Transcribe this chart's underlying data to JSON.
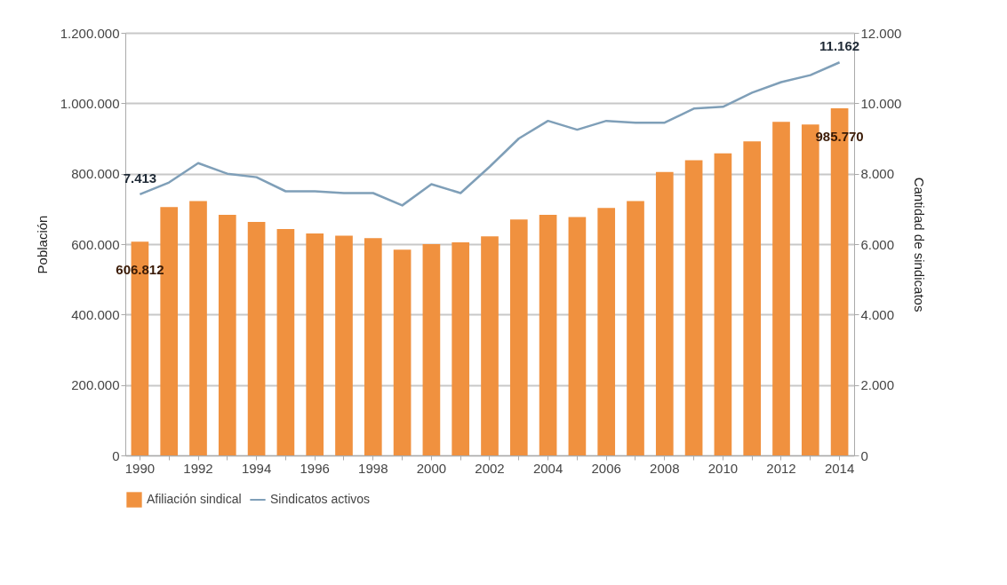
{
  "chart_data": {
    "type": "bar",
    "categories": [
      "1990",
      null,
      "1992",
      null,
      "1994",
      null,
      "1996",
      null,
      "1998",
      null,
      "2000",
      null,
      "2002",
      null,
      "2004",
      null,
      "2006",
      null,
      "2008",
      null,
      "2010",
      null,
      "2012",
      null,
      "2014"
    ],
    "series": [
      {
        "name": "Afiliación sindical",
        "color": "#f0913f",
        "values": [
          606812,
          705000,
          722000,
          683000,
          663000,
          643000,
          630000,
          624000,
          617000,
          584000,
          600000,
          605000,
          622000,
          670000,
          683000,
          677000,
          703000,
          722000,
          805000,
          838000,
          858000,
          892000,
          947000,
          940000,
          985770
        ],
        "value_labels": [
          "606.812",
          null,
          null,
          null,
          null,
          null,
          null,
          null,
          null,
          null,
          null,
          null,
          null,
          null,
          null,
          null,
          null,
          null,
          null,
          null,
          null,
          null,
          null,
          null,
          "985.770"
        ]
      },
      {
        "name": "Sindicatos activos",
        "type": "line",
        "axis": "y2",
        "color": "#7f9fb8",
        "values": [
          7413,
          7750,
          8300,
          8000,
          7900,
          7500,
          7500,
          7450,
          7450,
          7100,
          7700,
          7450,
          8200,
          9000,
          9500,
          9250,
          9500,
          9450,
          9450,
          9850,
          9900,
          10300,
          10600,
          10800,
          11162
        ],
        "value_labels": [
          "7.413",
          null,
          null,
          null,
          null,
          null,
          null,
          null,
          null,
          null,
          null,
          null,
          null,
          null,
          null,
          null,
          null,
          null,
          null,
          null,
          null,
          null,
          null,
          null,
          "11.162"
        ]
      }
    ],
    "ylabel": "Población",
    "y2label": "Cantidad de sindicatos",
    "ylim": [
      0,
      1200000
    ],
    "yticks": [
      0,
      {
        "value": 200000,
        "label": "200.000"
      },
      {
        "value": 400000,
        "label": "400.000"
      },
      {
        "value": 600000,
        "label": "600.000"
      },
      {
        "value": 800000,
        "label": "800.000"
      },
      {
        "value": 1000000,
        "label": "1.000.000"
      },
      {
        "value": 1200000,
        "label": "1.200.000"
      }
    ],
    "y2lim": [
      0,
      12000
    ],
    "y2ticks": [
      0,
      {
        "value": 2000,
        "label": "2.000"
      },
      {
        "value": 4000,
        "label": "4.000"
      },
      {
        "value": 6000,
        "label": "6.000"
      },
      {
        "value": 8000,
        "label": "8.000"
      },
      {
        "value": 10000,
        "label": "10.000"
      },
      {
        "value": 12000,
        "label": "12.000"
      }
    ],
    "grid": "y",
    "legend": "bottom"
  }
}
